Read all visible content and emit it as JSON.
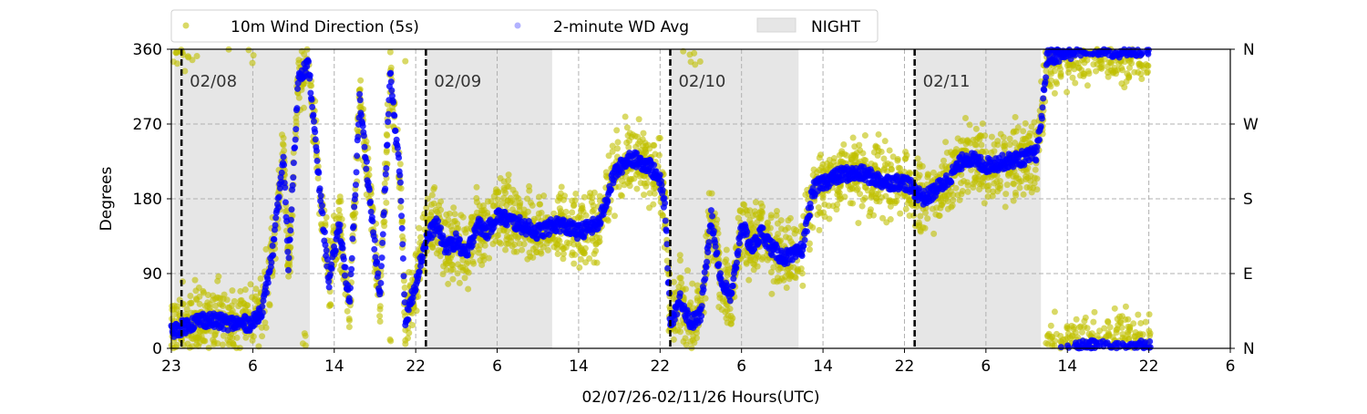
{
  "chart_data": {
    "type": "scatter",
    "ylabel": "Degrees",
    "xlabel": "02/07/26-02/11/26  Hours(UTC)",
    "ylim": [
      0,
      360
    ],
    "xlim_hours_from_start": [
      0,
      104
    ],
    "grid": true,
    "legend_placement": "top-center",
    "x_ticks": [
      {
        "h": 0,
        "label": "23"
      },
      {
        "h": 8,
        "label": "6"
      },
      {
        "h": 16,
        "label": "14"
      },
      {
        "h": 24,
        "label": "22"
      },
      {
        "h": 32,
        "label": "6"
      },
      {
        "h": 40,
        "label": "14"
      },
      {
        "h": 48,
        "label": "22"
      },
      {
        "h": 56,
        "label": "6"
      },
      {
        "h": 64,
        "label": "14"
      },
      {
        "h": 72,
        "label": "22"
      },
      {
        "h": 80,
        "label": "6"
      },
      {
        "h": 88,
        "label": "14"
      },
      {
        "h": 96,
        "label": "22"
      },
      {
        "h": 104,
        "label": "6"
      }
    ],
    "y_ticks": [
      0,
      90,
      180,
      270,
      360
    ],
    "y_right_ticks": [
      {
        "v": 0,
        "label": "N"
      },
      {
        "v": 90,
        "label": "E"
      },
      {
        "v": 180,
        "label": "S"
      },
      {
        "v": 270,
        "label": "W"
      },
      {
        "v": 360,
        "label": "N"
      }
    ],
    "day_markers": [
      {
        "h": 1,
        "label": "02/08"
      },
      {
        "h": 25,
        "label": "02/09"
      },
      {
        "h": 49,
        "label": "02/10"
      },
      {
        "h": 73,
        "label": "02/11"
      }
    ],
    "night_periods": [
      [
        0.3,
        13.6
      ],
      [
        24.9,
        37.4
      ],
      [
        48.9,
        61.6
      ],
      [
        72.9,
        85.4
      ]
    ],
    "legend": [
      {
        "label": "10m Wind Direction (5s)",
        "color": "#bfbf00"
      },
      {
        "label": "2-minute WD Avg",
        "color": "#0000ff"
      },
      {
        "label": "NIGHT",
        "color": "#e6e6e6"
      }
    ],
    "series": [
      {
        "name": "2-minute WD Avg trend (degrees)",
        "color": "#0000ff",
        "spread_5s": 30,
        "points": [
          [
            0,
            20
          ],
          [
            3,
            35
          ],
          [
            6,
            30
          ],
          [
            8,
            30
          ],
          [
            9,
            50
          ],
          [
            10,
            120
          ],
          [
            11,
            230
          ],
          [
            11.5,
            100
          ],
          [
            12.5,
            330
          ],
          [
            13.5,
            340
          ],
          [
            14.5,
            200
          ],
          [
            15.5,
            80
          ],
          [
            16.5,
            150
          ],
          [
            17.5,
            50
          ],
          [
            18.5,
            300
          ],
          [
            19.5,
            180
          ],
          [
            20.5,
            60
          ],
          [
            21.5,
            330
          ],
          [
            22.5,
            200
          ],
          [
            23,
            30
          ],
          [
            24,
            80
          ],
          [
            25,
            130
          ],
          [
            26,
            150
          ],
          [
            27,
            120
          ],
          [
            28,
            130
          ],
          [
            29,
            110
          ],
          [
            30,
            150
          ],
          [
            31,
            140
          ],
          [
            32,
            160
          ],
          [
            34,
            150
          ],
          [
            36,
            140
          ],
          [
            38,
            150
          ],
          [
            40,
            140
          ],
          [
            42,
            150
          ],
          [
            42.5,
            170
          ],
          [
            43.5,
            210
          ],
          [
            45,
            230
          ],
          [
            47,
            220
          ],
          [
            48,
            200
          ],
          [
            48.5,
            170
          ],
          [
            49,
            30
          ],
          [
            50,
            60
          ],
          [
            51,
            30
          ],
          [
            52,
            40
          ],
          [
            53,
            160
          ],
          [
            54,
            80
          ],
          [
            55,
            60
          ],
          [
            56,
            150
          ],
          [
            57,
            120
          ],
          [
            58,
            140
          ],
          [
            59,
            120
          ],
          [
            60,
            110
          ],
          [
            61,
            110
          ],
          [
            62,
            120
          ],
          [
            63,
            190
          ],
          [
            64,
            200
          ],
          [
            66,
            210
          ],
          [
            68,
            210
          ],
          [
            70,
            200
          ],
          [
            72,
            200
          ],
          [
            73,
            190
          ],
          [
            74,
            180
          ],
          [
            76,
            200
          ],
          [
            78,
            230
          ],
          [
            80,
            220
          ],
          [
            82,
            225
          ],
          [
            84,
            230
          ],
          [
            85,
            235
          ],
          [
            85.5,
            280
          ],
          [
            86,
            350
          ],
          [
            90,
            362
          ],
          [
            93,
            358
          ],
          [
            96.2,
            362
          ]
        ]
      }
    ]
  }
}
